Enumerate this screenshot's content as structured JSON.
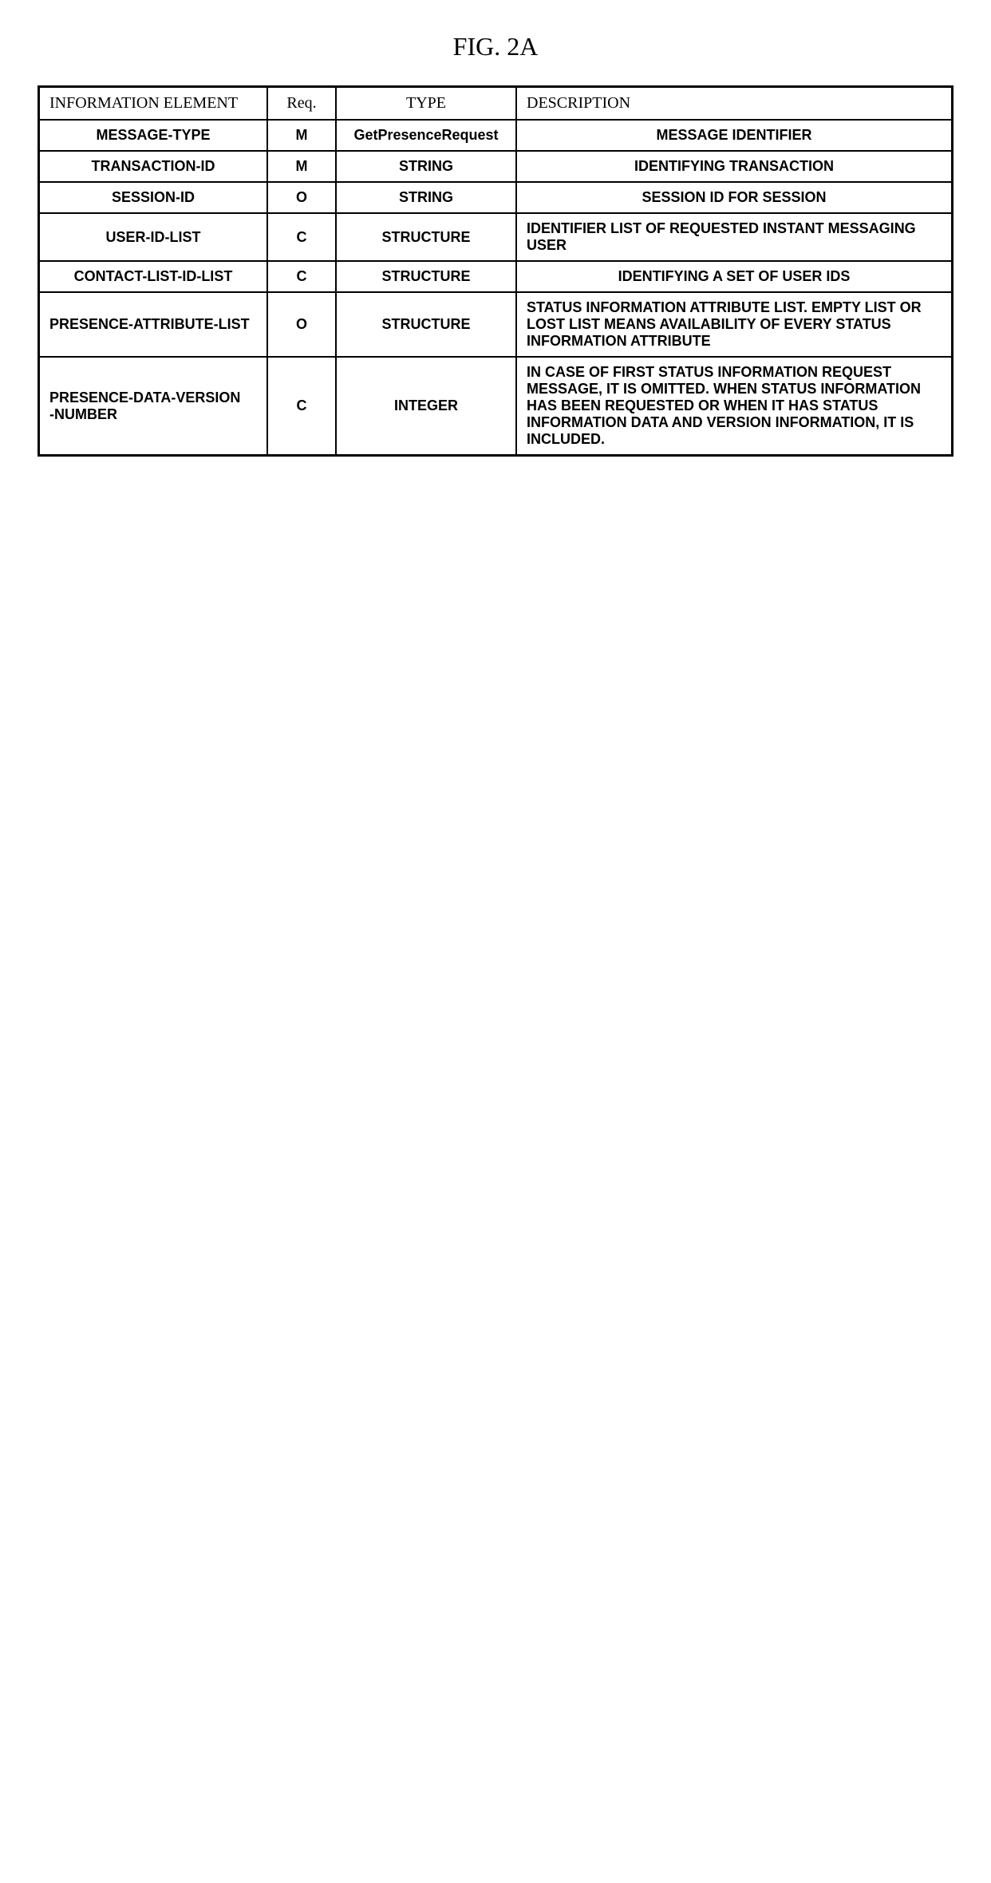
{
  "figure_title": "FIG. 2A",
  "headers": {
    "info": "INFORMATION ELEMENT",
    "req": "Req.",
    "type": "TYPE",
    "desc": "DESCRIPTION"
  },
  "rows": [
    {
      "info": "MESSAGE-TYPE",
      "req": "M",
      "type": "GetPresenceRequest",
      "desc": "MESSAGE IDENTIFIER",
      "info_align": "center",
      "type_case": "normal"
    },
    {
      "info": "TRANSACTION-ID",
      "req": "M",
      "type": "STRING",
      "desc": "IDENTIFYING TRANSACTION",
      "info_align": "center"
    },
    {
      "info": "SESSION-ID",
      "req": "O",
      "type": "STRING",
      "desc": "SESSION ID FOR SESSION",
      "info_align": "center"
    },
    {
      "info": "USER-ID-LIST",
      "req": "C",
      "type": "STRUCTURE",
      "desc": "IDENTIFIER LIST OF REQUESTED INSTANT MESSAGING USER",
      "info_align": "center"
    },
    {
      "info": "CONTACT-LIST-ID-LIST",
      "req": "C",
      "type": "STRUCTURE",
      "desc": "IDENTIFYING A SET OF USER IDs",
      "info_align": "center"
    },
    {
      "info": "PRESENCE-ATTRIBUTE-LIST",
      "req": "O",
      "type": "STRUCTURE",
      "desc": "STATUS INFORMATION ATTRIBUTE LIST. EMPTY LIST OR LOST LIST MEANS AVAILABILITY OF EVERY STATUS INFORMATION ATTRIBUTE",
      "info_align": "left"
    },
    {
      "info": "PRESENCE-DATA-VERSION\n-NUMBER",
      "req": "C",
      "type": "INTEGER",
      "desc": "IN CASE OF FIRST STATUS INFORMATION REQUEST MESSAGE, IT IS OMITTED. WHEN STATUS INFORMATION HAS BEEN REQUESTED OR WHEN IT HAS STATUS INFORMATION DATA AND VERSION INFORMATION, IT IS INCLUDED.",
      "info_align": "left"
    }
  ]
}
